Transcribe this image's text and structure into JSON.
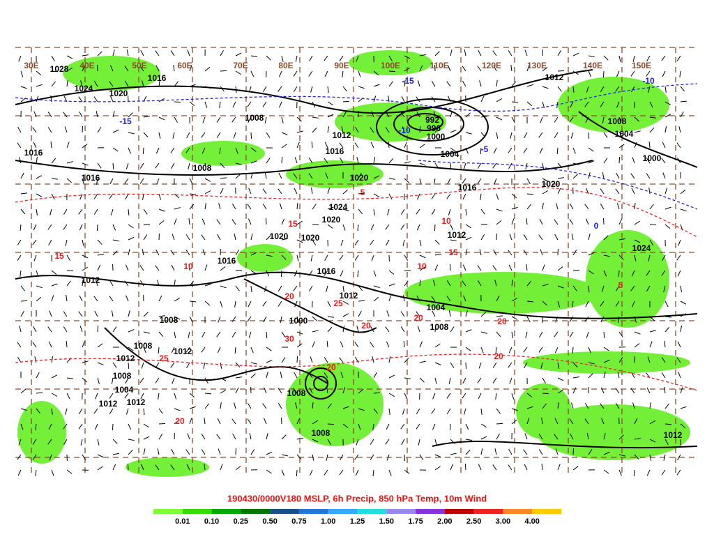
{
  "title": "190430/0000V180 MSLP, 6h Precip, 850 hPa Temp, 10m Wind",
  "longitude_labels": [
    "30E",
    "40E",
    "50E",
    "60E",
    "70E",
    "80E",
    "90E",
    "100E",
    "110E",
    "120E",
    "130E",
    "140E",
    "150E"
  ],
  "isobar_labels": [
    "1028",
    "1024",
    "1020",
    "1016",
    "1008",
    "1016",
    "1016",
    "1008",
    "1012",
    "1016",
    "992",
    "996",
    "1000",
    "1004",
    "1012",
    "1020",
    "1016",
    "1024",
    "1020",
    "1020",
    "1012",
    "1008",
    "1004",
    "1000",
    "1020",
    "1024",
    "1016",
    "1020",
    "1012",
    "1016",
    "1012",
    "1004",
    "1008",
    "1000",
    "1008",
    "1008",
    "1012",
    "1012",
    "1008",
    "1004",
    "1008",
    "1012",
    "1012",
    "1008",
    "1012"
  ],
  "temperature_labels": [
    {
      "text": "-15",
      "color": "#1a1aee"
    },
    {
      "text": "-15",
      "color": "#1a1aee"
    },
    {
      "text": "-10",
      "color": "#1a1aee"
    },
    {
      "text": "-5",
      "color": "#1a1aee"
    },
    {
      "text": "-10",
      "color": "#1a1aee"
    },
    {
      "text": "0",
      "color": "#1a1aee"
    },
    {
      "text": "5",
      "color": "#ee1a1a"
    },
    {
      "text": "10",
      "color": "#ee1a1a"
    },
    {
      "text": "15",
      "color": "#ee1a1a"
    },
    {
      "text": "15",
      "color": "#ee1a1a"
    },
    {
      "text": "10",
      "color": "#ee1a1a"
    },
    {
      "text": "20",
      "color": "#ee1a1a"
    },
    {
      "text": "25",
      "color": "#ee1a1a"
    },
    {
      "text": "30",
      "color": "#ee1a1a"
    },
    {
      "text": "20",
      "color": "#ee1a1a"
    },
    {
      "text": "20",
      "color": "#ee1a1a"
    },
    {
      "text": "25",
      "color": "#ee1a1a"
    },
    {
      "text": "20",
      "color": "#ee1a1a"
    },
    {
      "text": "10",
      "color": "#ee1a1a"
    },
    {
      "text": "20",
      "color": "#ee1a1a"
    },
    {
      "text": "15",
      "color": "#ee1a1a"
    },
    {
      "text": "5",
      "color": "#ee1a1a"
    },
    {
      "text": "20",
      "color": "#ee1a1a"
    },
    {
      "text": "20",
      "color": "#ee1a1a"
    }
  ],
  "colorbar": {
    "labels": [
      "0.01",
      "0.10",
      "0.25",
      "0.50",
      "0.75",
      "1.00",
      "1.25",
      "1.50",
      "1.75",
      "2.00",
      "2.50",
      "3.00",
      "4.00"
    ],
    "colors": [
      "#7dff3a",
      "#33dd00",
      "#00aa00",
      "#007700",
      "#1a4f8a",
      "#2277dd",
      "#33aaff",
      "#22dddd",
      "#9988ee",
      "#8833dd",
      "#bb0000",
      "#ee2222",
      "#ff8822",
      "#ffcc00"
    ]
  }
}
